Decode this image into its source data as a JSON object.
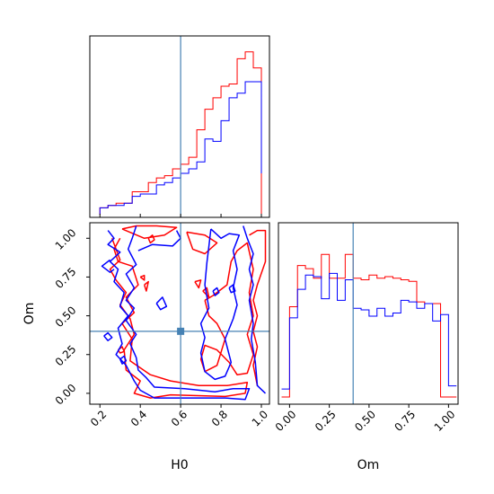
{
  "chart_data": {
    "type": "corner",
    "params": [
      "H0",
      "Om"
    ],
    "truth": {
      "H0": 0.6,
      "Om": 0.4
    },
    "colors": {
      "red": "#ff0000",
      "blue": "#0000ff",
      "truth": "#4682b4"
    },
    "h0_hist": {
      "xlim": [
        0.15,
        1.04
      ],
      "bins": [
        0.2,
        0.24,
        0.28,
        0.32,
        0.36,
        0.4,
        0.44,
        0.48,
        0.52,
        0.56,
        0.6,
        0.64,
        0.68,
        0.72,
        0.76,
        0.8,
        0.84,
        0.88,
        0.92,
        0.96,
        1.0
      ],
      "series": [
        {
          "color": "red",
          "values": [
            3,
            4,
            5,
            5,
            10,
            10,
            14,
            16,
            17,
            20,
            22,
            25,
            37,
            46,
            51,
            56,
            57,
            68,
            71,
            64,
            0
          ]
        },
        {
          "color": "blue",
          "values": [
            3,
            4,
            4,
            5,
            8,
            9,
            9,
            13,
            14,
            16,
            18,
            20,
            23,
            33,
            32,
            41,
            51,
            53,
            58,
            58,
            18
          ]
        }
      ]
    },
    "om_hist": {
      "xlim": [
        -0.07,
        1.06
      ],
      "bins": [
        -0.05,
        0.0,
        0.05,
        0.1,
        0.15,
        0.2,
        0.25,
        0.3,
        0.35,
        0.4,
        0.45,
        0.5,
        0.55,
        0.6,
        0.65,
        0.7,
        0.75,
        0.8,
        0.85,
        0.9,
        0.95,
        1.0,
        1.05
      ],
      "series": [
        {
          "color": "red",
          "values": [
            0,
            57,
            83,
            81,
            75,
            90,
            75,
            75,
            90,
            75,
            74,
            77,
            75,
            76,
            75,
            74,
            73,
            60,
            59,
            59,
            0,
            0
          ]
        },
        {
          "color": "blue",
          "values": [
            5,
            50,
            68,
            77,
            76,
            62,
            78,
            61,
            74,
            56,
            55,
            51,
            56,
            51,
            53,
            61,
            60,
            56,
            59,
            48,
            52,
            7
          ]
        }
      ]
    },
    "contour": {
      "xlim": [
        0.15,
        1.04
      ],
      "ylim": [
        -0.07,
        1.1
      ],
      "xticks": [
        "0.2",
        "0.4",
        "0.6",
        "0.8",
        "1.0"
      ],
      "yticks": [
        "0.00",
        "0.25",
        "0.50",
        "0.75",
        "1.00"
      ],
      "red_paths": [
        [
          [
            0.3,
            1.0
          ],
          [
            0.27,
            0.93
          ],
          [
            0.29,
            0.85
          ],
          [
            0.36,
            0.82
          ],
          [
            0.39,
            0.7
          ],
          [
            0.33,
            0.62
          ],
          [
            0.37,
            0.52
          ],
          [
            0.31,
            0.45
          ],
          [
            0.36,
            0.35
          ],
          [
            0.35,
            0.21
          ],
          [
            0.45,
            0.12
          ],
          [
            0.55,
            0.08
          ],
          [
            0.69,
            0.05
          ],
          [
            0.83,
            0.05
          ],
          [
            0.93,
            0.07
          ],
          [
            0.92,
            0.0
          ],
          [
            0.82,
            -0.02
          ],
          [
            0.55,
            -0.01
          ],
          [
            0.45,
            -0.03
          ],
          [
            0.37,
            0.0
          ],
          [
            0.4,
            0.08
          ],
          [
            0.33,
            0.15
          ],
          [
            0.32,
            0.28
          ],
          [
            0.37,
            0.38
          ],
          [
            0.35,
            0.48
          ],
          [
            0.3,
            0.57
          ],
          [
            0.33,
            0.65
          ],
          [
            0.28,
            0.73
          ],
          [
            0.25,
            0.8
          ],
          [
            0.3,
            0.86
          ],
          [
            0.26,
            1.0
          ]
        ],
        [
          [
            0.31,
            1.06
          ],
          [
            0.42,
            1.0
          ],
          [
            0.52,
            1.02
          ],
          [
            0.58,
            1.07
          ],
          [
            0.48,
            1.08
          ],
          [
            0.38,
            1.08
          ],
          [
            0.31,
            1.06
          ]
        ],
        [
          [
            0.63,
            1.04
          ],
          [
            0.72,
            1.02
          ],
          [
            0.78,
            0.97
          ],
          [
            0.72,
            0.9
          ],
          [
            0.66,
            0.93
          ],
          [
            0.63,
            1.04
          ]
        ],
        [
          [
            0.72,
            0.6
          ],
          [
            0.76,
            0.63
          ],
          [
            0.83,
            0.7
          ],
          [
            0.85,
            0.85
          ],
          [
            0.88,
            0.92
          ],
          [
            0.93,
            0.97
          ],
          [
            0.96,
            0.8
          ],
          [
            0.94,
            0.65
          ],
          [
            0.96,
            0.5
          ],
          [
            0.93,
            0.38
          ],
          [
            0.96,
            0.25
          ],
          [
            0.93,
            0.13
          ],
          [
            0.88,
            0.12
          ],
          [
            0.84,
            0.2
          ],
          [
            0.78,
            0.28
          ],
          [
            0.72,
            0.31
          ],
          [
            0.7,
            0.22
          ],
          [
            0.72,
            0.14
          ],
          [
            0.78,
            0.18
          ],
          [
            0.82,
            0.35
          ],
          [
            0.78,
            0.45
          ],
          [
            0.74,
            0.5
          ],
          [
            0.72,
            0.6
          ]
        ],
        [
          [
            0.94,
            1.02
          ],
          [
            0.98,
            1.05
          ],
          [
            1.02,
            1.05
          ],
          [
            1.02,
            0.85
          ],
          [
            0.98,
            0.7
          ],
          [
            0.96,
            0.6
          ],
          [
            0.98,
            0.5
          ],
          [
            0.96,
            0.4
          ],
          [
            0.98,
            0.3
          ],
          [
            0.96,
            0.18
          ],
          [
            0.98,
            0.05
          ]
        ],
        [
          [
            0.44,
            1.0
          ],
          [
            0.46,
            1.02
          ],
          [
            0.47,
            0.99
          ],
          [
            0.45,
            0.97
          ],
          [
            0.44,
            1.0
          ]
        ],
        [
          [
            0.4,
            0.75
          ],
          [
            0.42,
            0.76
          ],
          [
            0.42,
            0.73
          ],
          [
            0.4,
            0.75
          ]
        ],
        [
          [
            0.42,
            0.7
          ],
          [
            0.44,
            0.72
          ],
          [
            0.43,
            0.66
          ],
          [
            0.42,
            0.7
          ]
        ],
        [
          [
            0.29,
            0.28
          ],
          [
            0.31,
            0.3
          ],
          [
            0.32,
            0.27
          ],
          [
            0.3,
            0.26
          ],
          [
            0.29,
            0.28
          ]
        ],
        [
          [
            0.67,
            0.72
          ],
          [
            0.7,
            0.73
          ],
          [
            0.69,
            0.68
          ],
          [
            0.67,
            0.72
          ]
        ],
        [
          [
            0.71,
            0.66
          ],
          [
            0.73,
            0.68
          ],
          [
            0.74,
            0.62
          ],
          [
            0.71,
            0.66
          ]
        ]
      ],
      "blue_paths": [
        [
          [
            0.24,
            1.05
          ],
          [
            0.27,
            1.0
          ],
          [
            0.24,
            0.96
          ],
          [
            0.3,
            0.91
          ],
          [
            0.25,
            0.85
          ],
          [
            0.29,
            0.8
          ],
          [
            0.27,
            0.72
          ],
          [
            0.32,
            0.65
          ],
          [
            0.3,
            0.56
          ],
          [
            0.34,
            0.5
          ],
          [
            0.29,
            0.42
          ],
          [
            0.31,
            0.32
          ],
          [
            0.28,
            0.25
          ],
          [
            0.33,
            0.18
          ],
          [
            0.37,
            0.08
          ],
          [
            0.4,
            0.02
          ],
          [
            0.47,
            -0.03
          ],
          [
            0.6,
            -0.03
          ],
          [
            0.82,
            -0.03
          ],
          [
            0.92,
            -0.04
          ],
          [
            0.94,
            0.03
          ],
          [
            0.86,
            0.03
          ],
          [
            0.77,
            0.01
          ],
          [
            0.62,
            0.03
          ],
          [
            0.47,
            0.04
          ],
          [
            0.43,
            0.1
          ],
          [
            0.39,
            0.15
          ],
          [
            0.38,
            0.23
          ],
          [
            0.35,
            0.32
          ],
          [
            0.38,
            0.38
          ],
          [
            0.33,
            0.47
          ],
          [
            0.37,
            0.55
          ],
          [
            0.33,
            0.6
          ],
          [
            0.37,
            0.68
          ],
          [
            0.33,
            0.77
          ],
          [
            0.38,
            0.83
          ],
          [
            0.34,
            0.93
          ],
          [
            0.36,
            1.0
          ],
          [
            0.38,
            1.08
          ]
        ],
        [
          [
            0.39,
            0.92
          ],
          [
            0.46,
            0.96
          ],
          [
            0.56,
            0.95
          ],
          [
            0.6,
            1.0
          ],
          [
            0.58,
            1.05
          ]
        ],
        [
          [
            0.25,
            0.86
          ],
          [
            0.21,
            0.82
          ],
          [
            0.25,
            0.78
          ],
          [
            0.27,
            0.8
          ]
        ],
        [
          [
            0.75,
            1.06
          ],
          [
            0.74,
            0.95
          ],
          [
            0.73,
            0.84
          ],
          [
            0.72,
            0.7
          ],
          [
            0.74,
            0.55
          ],
          [
            0.7,
            0.45
          ],
          [
            0.72,
            0.36
          ],
          [
            0.7,
            0.26
          ],
          [
            0.72,
            0.14
          ],
          [
            0.77,
            0.09
          ],
          [
            0.82,
            0.11
          ],
          [
            0.85,
            0.2
          ],
          [
            0.82,
            0.35
          ],
          [
            0.86,
            0.48
          ],
          [
            0.88,
            0.57
          ],
          [
            0.86,
            0.68
          ],
          [
            0.88,
            0.8
          ],
          [
            0.86,
            0.92
          ],
          [
            0.89,
            1.02
          ],
          [
            0.84,
            1.03
          ],
          [
            0.8,
            1.0
          ],
          [
            0.75,
            1.06
          ]
        ],
        [
          [
            0.91,
            1.08
          ],
          [
            0.93,
            1.0
          ],
          [
            0.96,
            0.9
          ],
          [
            0.94,
            0.8
          ],
          [
            0.96,
            0.7
          ],
          [
            0.94,
            0.6
          ],
          [
            0.96,
            0.45
          ],
          [
            0.95,
            0.35
          ],
          [
            0.97,
            0.2
          ],
          [
            0.98,
            0.05
          ],
          [
            1.02,
            0.0
          ]
        ],
        [
          [
            0.48,
            0.58
          ],
          [
            0.51,
            0.62
          ],
          [
            0.53,
            0.56
          ],
          [
            0.5,
            0.54
          ],
          [
            0.48,
            0.58
          ]
        ],
        [
          [
            0.22,
            0.37
          ],
          [
            0.24,
            0.39
          ],
          [
            0.26,
            0.36
          ],
          [
            0.24,
            0.34
          ],
          [
            0.22,
            0.37
          ]
        ],
        [
          [
            0.3,
            0.22
          ],
          [
            0.32,
            0.24
          ],
          [
            0.33,
            0.21
          ],
          [
            0.31,
            0.19
          ],
          [
            0.3,
            0.22
          ]
        ],
        [
          [
            0.76,
            0.66
          ],
          [
            0.78,
            0.68
          ],
          [
            0.79,
            0.65
          ],
          [
            0.77,
            0.63
          ],
          [
            0.76,
            0.66
          ]
        ],
        [
          [
            0.84,
            0.68
          ],
          [
            0.86,
            0.7
          ],
          [
            0.87,
            0.66
          ],
          [
            0.85,
            0.65
          ],
          [
            0.84,
            0.68
          ]
        ]
      ]
    },
    "xlabel_h0": "H0",
    "xlabel_om": "Om",
    "ylabel_om": "Om",
    "om_xticks": [
      "0.00",
      "0.25",
      "0.50",
      "0.75",
      "1.00"
    ]
  }
}
